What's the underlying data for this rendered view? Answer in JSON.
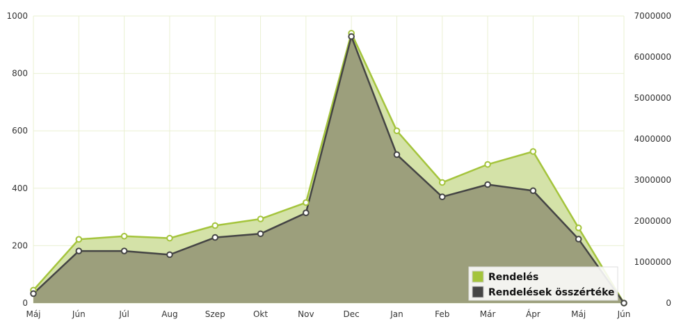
{
  "chart_data": {
    "type": "area",
    "categories": [
      "Máj",
      "Jún",
      "Júl",
      "Aug",
      "Szep",
      "Okt",
      "Nov",
      "Dec",
      "Jan",
      "Feb",
      "Már",
      "Ápr",
      "Máj",
      "Jún"
    ],
    "y_left": {
      "min": 0,
      "max": 1000,
      "ticks": [
        "0",
        "200",
        "400",
        "600",
        "800",
        "1000"
      ]
    },
    "y_right": {
      "min": 0,
      "max": 7000000,
      "ticks": [
        "0",
        "1000000",
        "2000000",
        "3000000",
        "4000000",
        "5000000",
        "6000000",
        "7000000"
      ]
    },
    "series": [
      {
        "name": "Rendelés",
        "axis": "left",
        "color": "#a4c43c",
        "fill": "#d4e2a8",
        "values": [
          45,
          222,
          233,
          226,
          270,
          293,
          350,
          940,
          600,
          420,
          483,
          528,
          262,
          0
        ]
      },
      {
        "name": "Rendelések összértéke",
        "axis": "right",
        "color": "#444444",
        "fill": "#9c9f7c",
        "values": [
          230000,
          1270000,
          1270000,
          1180000,
          1600000,
          1690000,
          2200000,
          6500000,
          3620000,
          2590000,
          2890000,
          2740000,
          1560000,
          0
        ]
      }
    ],
    "grid": true,
    "legend_position": "bottom-right"
  }
}
